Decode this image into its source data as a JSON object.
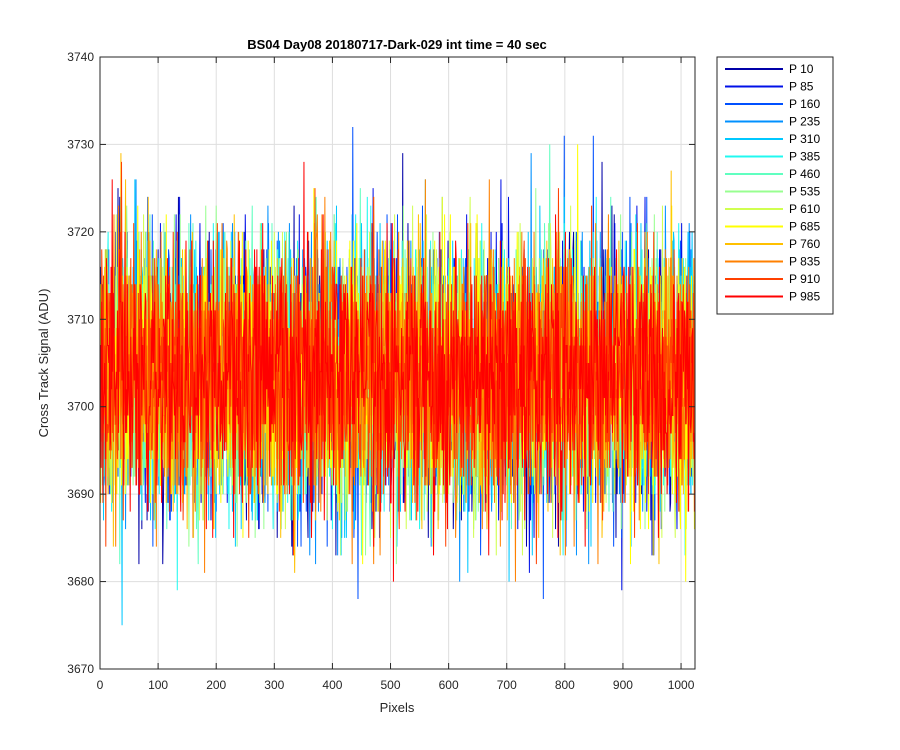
{
  "chart_data": {
    "type": "line",
    "title": "BS04 Day08 20180717-Dark-029 int time = 40 sec",
    "xlabel": "Pixels",
    "ylabel": "Cross Track Signal (ADU)",
    "xlim": [
      0,
      1024
    ],
    "ylim": [
      3670,
      3740
    ],
    "xticks": [
      0,
      100,
      200,
      300,
      400,
      500,
      600,
      700,
      800,
      900,
      1000
    ],
    "yticks": [
      3670,
      3680,
      3690,
      3700,
      3710,
      3720,
      3730,
      3740
    ],
    "grid": true,
    "legend_position": "outside-top-right",
    "n_points": 1024,
    "series": [
      {
        "name": "P 10",
        "color": "#0000a8",
        "mean": 3703.5,
        "std": 7.5,
        "seed": 11
      },
      {
        "name": "P 85",
        "color": "#0010e8",
        "mean": 3703.5,
        "std": 7.5,
        "seed": 12
      },
      {
        "name": "P 160",
        "color": "#0050ff",
        "mean": 3703.5,
        "std": 7.5,
        "seed": 13
      },
      {
        "name": "P 235",
        "color": "#0090ff",
        "mean": 3703.5,
        "std": 7.5,
        "seed": 14
      },
      {
        "name": "P 310",
        "color": "#00c8ff",
        "mean": 3703.5,
        "std": 7.5,
        "seed": 15
      },
      {
        "name": "P 385",
        "color": "#20f8f0",
        "mean": 3703.5,
        "std": 7.5,
        "seed": 16
      },
      {
        "name": "P 460",
        "color": "#60ffc0",
        "mean": 3703.5,
        "std": 7.5,
        "seed": 17
      },
      {
        "name": "P 535",
        "color": "#98ff90",
        "mean": 3703.5,
        "std": 7.5,
        "seed": 18
      },
      {
        "name": "P 610",
        "color": "#d0ff50",
        "mean": 3703.5,
        "std": 7.5,
        "seed": 19
      },
      {
        "name": "P 685",
        "color": "#ffff00",
        "mean": 3703.5,
        "std": 7.5,
        "seed": 20
      },
      {
        "name": "P 760",
        "color": "#ffc000",
        "mean": 3703.5,
        "std": 7.5,
        "seed": 21
      },
      {
        "name": "P 835",
        "color": "#ff8000",
        "mean": 3703.5,
        "std": 7.5,
        "seed": 22
      },
      {
        "name": "P 910",
        "color": "#ff4000",
        "mean": 3703.5,
        "std": 7.5,
        "seed": 23
      },
      {
        "name": "P 985",
        "color": "#ff0000",
        "mean": 3703.5,
        "std": 7.5,
        "seed": 24
      }
    ]
  }
}
